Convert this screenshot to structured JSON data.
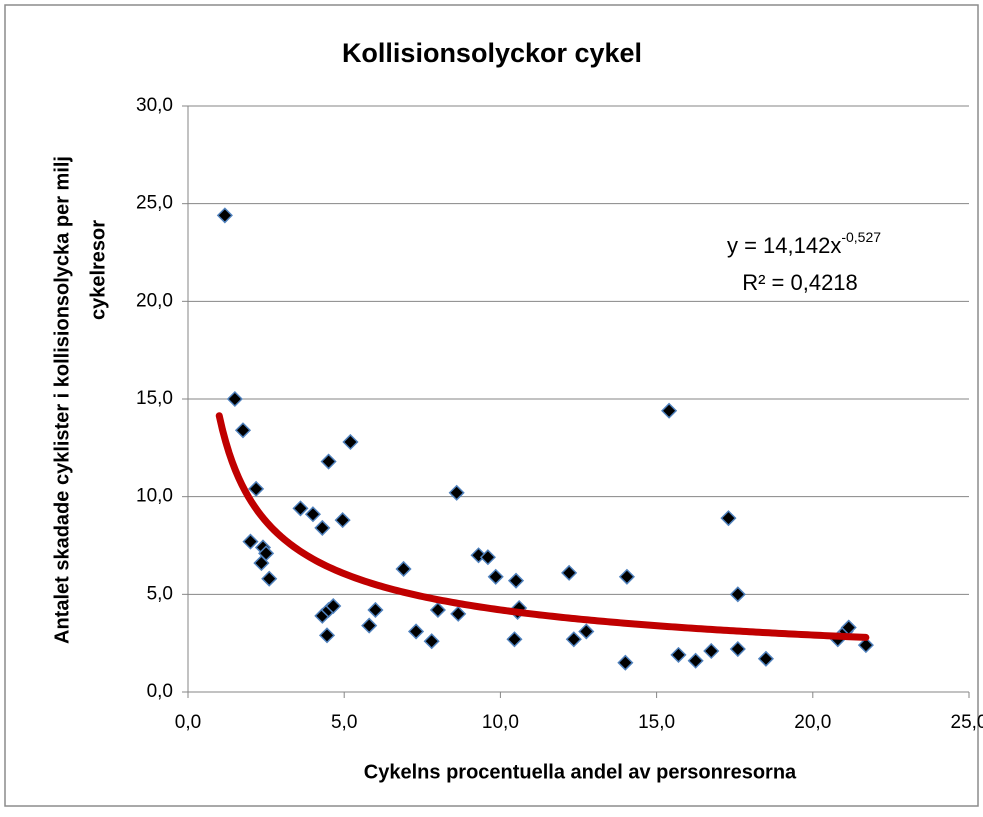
{
  "chart_data": {
    "type": "scatter",
    "title": "Kollisionsolyckor cykel",
    "x_label": "Cykelns procentuella andel av personresorna",
    "y_label": [
      "Antalet skadade cyklister i kollisionsolycka per milj",
      "cykelresor"
    ],
    "x": [
      1.18,
      1.5,
      1.76,
      2.18,
      2.0,
      2.4,
      2.35,
      2.5,
      2.6,
      3.6,
      4.0,
      4.3,
      4.5,
      5.2,
      4.95,
      4.3,
      4.5,
      4.65,
      4.45,
      5.8,
      6.0,
      6.9,
      7.3,
      7.8,
      8.0,
      8.6,
      8.65,
      9.3,
      9.6,
      9.85,
      10.45,
      10.5,
      10.55,
      10.6,
      12.2,
      12.35,
      12.75,
      14.0,
      14.05,
      15.4,
      15.7,
      16.25,
      16.75,
      17.3,
      17.6,
      17.6,
      18.5,
      20.8,
      21.05,
      21.15,
      21.7
    ],
    "values": [
      24.4,
      15.0,
      13.4,
      10.4,
      7.7,
      7.4,
      6.6,
      7.1,
      5.8,
      9.4,
      9.1,
      8.4,
      11.8,
      12.8,
      8.8,
      3.9,
      4.2,
      4.4,
      2.9,
      3.4,
      4.2,
      6.3,
      3.1,
      2.6,
      4.2,
      10.2,
      4.0,
      7.0,
      6.9,
      5.9,
      2.7,
      5.7,
      4.1,
      4.3,
      6.1,
      2.7,
      3.1,
      1.5,
      5.9,
      14.4,
      1.9,
      1.6,
      2.1,
      8.9,
      5.0,
      2.2,
      1.7,
      2.7,
      3.1,
      3.3,
      2.4
    ],
    "color": "#000000",
    "edge_color": "#4f81bd",
    "trendline": {
      "type": "power",
      "a": 14.142,
      "b": -0.527,
      "x_from": 1.0,
      "x_to": 21.7,
      "color": "#c00000",
      "equation": "y = 14,142x",
      "exponent": "-0,527",
      "r_squared": "R² = 0,4218"
    },
    "xlim": [
      0,
      25
    ],
    "xticks": [
      {
        "value": 0,
        "label": "0,0"
      },
      {
        "value": 5,
        "label": "5,0"
      },
      {
        "value": 10,
        "label": "10,0"
      },
      {
        "value": 15,
        "label": "15,0"
      },
      {
        "value": 20,
        "label": "20,0"
      },
      {
        "value": 25,
        "label": "25,0"
      }
    ],
    "ylim": [
      0,
      30
    ],
    "yticks": [
      {
        "value": 0,
        "label": "0,0"
      },
      {
        "value": 5,
        "label": "5,0"
      },
      {
        "value": 10,
        "label": "10,0"
      },
      {
        "value": 15,
        "label": "15,0"
      },
      {
        "value": 20,
        "label": "20,0"
      },
      {
        "value": 25,
        "label": "25,0"
      },
      {
        "value": 30,
        "label": "30,0"
      }
    ],
    "grid": true
  }
}
